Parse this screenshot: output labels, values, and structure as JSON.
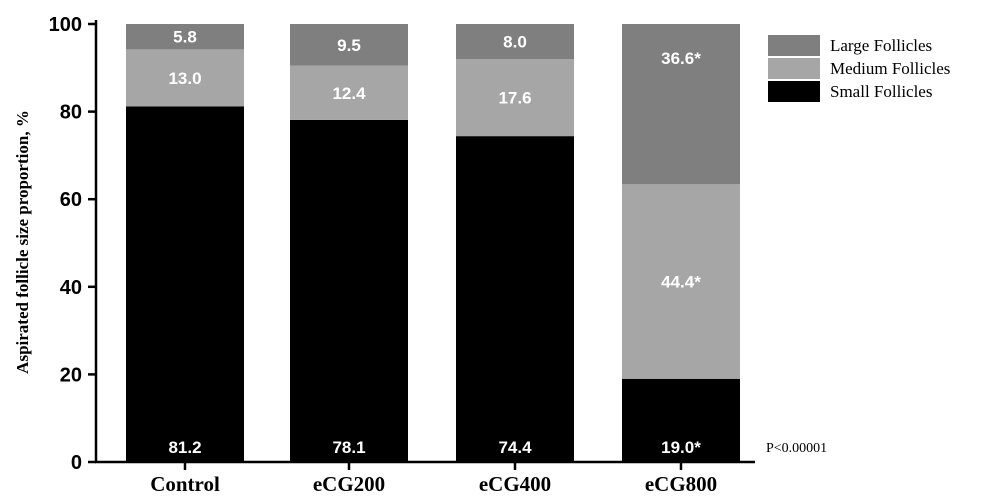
{
  "chart_data": {
    "type": "bar",
    "stacked": true,
    "categories": [
      "Control",
      "eCG200",
      "eCG400",
      "eCG800"
    ],
    "series": [
      {
        "name": "Small Follicles",
        "values": [
          81.2,
          78.1,
          74.4,
          19.0
        ],
        "labels": [
          "81.2",
          "78.1",
          "74.4",
          "19.0*"
        ],
        "color": "#000000"
      },
      {
        "name": "Medium Follicles",
        "values": [
          13.0,
          12.4,
          17.6,
          44.4
        ],
        "labels": [
          "13.0",
          "12.4",
          "17.6",
          "44.4*"
        ],
        "color": "#a6a6a6"
      },
      {
        "name": "Large Follicles",
        "values": [
          5.8,
          9.5,
          8.0,
          36.6
        ],
        "labels": [
          "5.8",
          "9.5",
          "8.0",
          "36.6*"
        ],
        "color": "#7f7f7f"
      }
    ],
    "legend_order": [
      "Large Follicles",
      "Medium Follicles",
      "Small Follicles"
    ],
    "legend_placement": "top-right",
    "title": "",
    "xlabel": "",
    "ylabel": "Aspirated follicle size proportion, %",
    "ylim": [
      0,
      100
    ],
    "yticks": [
      0,
      20,
      40,
      60,
      80,
      100
    ],
    "grid": false,
    "annotation": "P<0.00001"
  }
}
